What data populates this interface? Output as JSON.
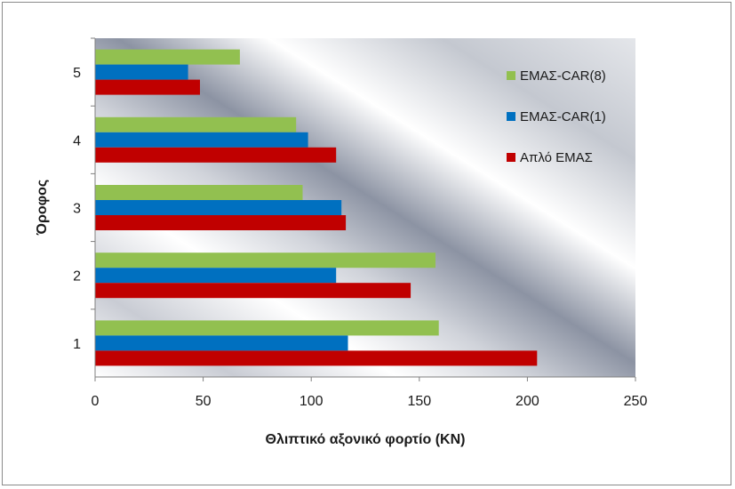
{
  "chart_data": {
    "type": "bar",
    "orientation": "horizontal",
    "categories": [
      "1",
      "2",
      "3",
      "4",
      "5"
    ],
    "series": [
      {
        "name": "Απλό ΕΜΑΣ",
        "color": "#C00000",
        "values": [
          204.5,
          146,
          116,
          111.5,
          48.5
        ]
      },
      {
        "name": "ΕΜΑΣ-CAR(1)",
        "color": "#0070C0",
        "values": [
          117,
          111.5,
          114,
          98.5,
          43
        ]
      },
      {
        "name": "ΕΜΑΣ-CAR(8)",
        "color": "#92C050",
        "values": [
          159,
          157.5,
          96,
          93,
          67
        ]
      }
    ],
    "legend_order": [
      2,
      1,
      0
    ],
    "title": "",
    "xlabel": "Θλιπτικό αξονικό φορτίο (KN)",
    "ylabel": "Όροφος",
    "xlim": [
      0,
      250
    ],
    "xticks": [
      "0",
      "50",
      "100",
      "150",
      "200",
      "250"
    ],
    "grid": false,
    "legend_position": "right"
  }
}
